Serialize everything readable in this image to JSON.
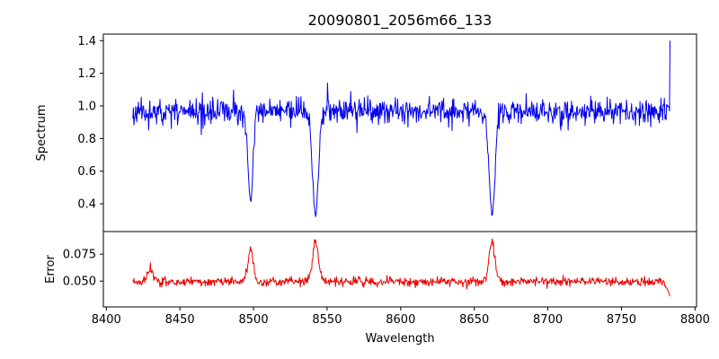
{
  "chart_data": {
    "type": "line",
    "title": "20090801_2056m66_133",
    "xlabel": "Wavelength",
    "grid": false,
    "legend": false,
    "xlim": [
      8398,
      8801
    ],
    "x_ticks": [
      8400,
      8450,
      8500,
      8550,
      8600,
      8650,
      8700,
      8750,
      8800
    ],
    "x_start": 8418,
    "x_end": 8783,
    "n_points": 950,
    "seed": 11,
    "panels": [
      {
        "name": "spectrum",
        "ylabel": "Spectrum",
        "color": "#0000ee",
        "ylim": [
          0.23,
          1.44
        ],
        "yticks": [
          0.4,
          0.6,
          0.8,
          1.0,
          1.2,
          1.4
        ],
        "tick_decimals": 1,
        "continuum": 0.965,
        "noise_sigma": 0.037,
        "outlier_prob": 0.03,
        "outlier_scale": 2.0,
        "absorption_lines": [
          {
            "center": 8498.0,
            "depth": 0.55,
            "sigma": 1.7
          },
          {
            "center": 8542.1,
            "depth": 0.64,
            "sigma": 2.0
          },
          {
            "center": 8662.1,
            "depth": 0.65,
            "sigma": 2.0
          }
        ],
        "end_spike": {
          "value": 1.4
        }
      },
      {
        "name": "error",
        "ylabel": "Error",
        "color": "#ee0000",
        "ylim": [
          0.026,
          0.096
        ],
        "yticks": [
          0.05,
          0.075
        ],
        "tick_decimals": 3,
        "base": 0.0495,
        "noise_sigma": 0.0021,
        "peaks": [
          {
            "center": 8430.0,
            "amp": 0.012,
            "sigma": 2.0
          },
          {
            "center": 8498.0,
            "amp": 0.03,
            "sigma": 1.7
          },
          {
            "center": 8542.1,
            "amp": 0.037,
            "sigma": 2.0
          },
          {
            "center": 8662.1,
            "amp": 0.037,
            "sigma": 2.0
          }
        ],
        "end_drop": {
          "start_x": 8779,
          "value": 0.036
        }
      }
    ]
  }
}
